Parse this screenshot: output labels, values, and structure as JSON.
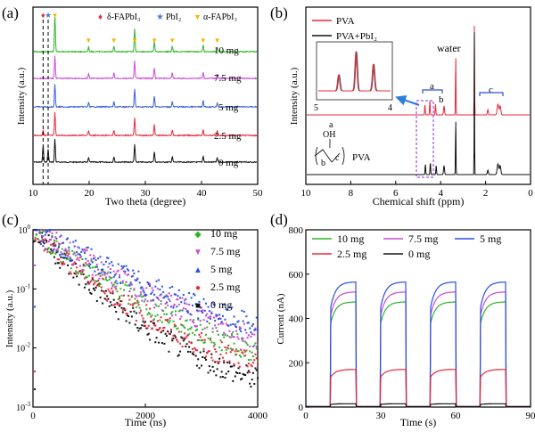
{
  "panels": {
    "a": {
      "label": "(a)"
    },
    "b": {
      "label": "(b)"
    },
    "c": {
      "label": "(c)"
    },
    "d": {
      "label": "(d)"
    }
  },
  "chart_data": [
    {
      "panel": "a",
      "type": "line",
      "xlabel": "Two theta (degree)",
      "ylabel": "Intensity (a.u.)",
      "xlim": [
        10,
        50
      ],
      "xticks": [
        10,
        20,
        30,
        40,
        50
      ],
      "legend": [
        {
          "marker": "♦",
          "text": "δ-FAPbI₃",
          "color": "#e8283c"
        },
        {
          "marker": "★",
          "text": "PbI₂",
          "color": "#4a7fd9"
        },
        {
          "marker": "▼",
          "text": "α-FAPbI₃",
          "color": "#f2b705"
        }
      ],
      "series": [
        {
          "name": "0 mg",
          "color": "#111111"
        },
        {
          "name": "2.5 mg",
          "color": "#e8283c"
        },
        {
          "name": "5 mg",
          "color": "#3a5fd9"
        },
        {
          "name": "7.5 mg",
          "color": "#c84bd6"
        },
        {
          "name": "10 mg",
          "color": "#2fb52a"
        }
      ],
      "peaks_2theta": [
        11.8,
        12.7,
        13.9,
        19.9,
        24.4,
        28.1,
        31.6,
        34.8,
        40.3,
        42.8
      ],
      "alpha_peak_markers": [
        13.9,
        19.9,
        24.4,
        28.1,
        31.6,
        34.8,
        40.3,
        42.8
      ]
    },
    {
      "panel": "b",
      "type": "line",
      "xlabel": "Chemical shift (ppm)",
      "ylabel": "Intensity (a.u.)",
      "xlim": [
        10,
        0
      ],
      "xticks": [
        10,
        8,
        6,
        4,
        2,
        0
      ],
      "series": [
        {
          "name": "PVA",
          "color": "#e8283c"
        },
        {
          "name": "PVA+PbI₂",
          "color": "#111111"
        }
      ],
      "annotations": [
        "water",
        "a",
        "b",
        "c",
        "PVA"
      ],
      "inset": {
        "xticks": [
          5,
          4
        ]
      },
      "structure_labels": {
        "oh": "OH",
        "a": "a",
        "b": "b",
        "c": "c"
      }
    },
    {
      "panel": "c",
      "type": "scatter",
      "xlabel": "Time (ns)",
      "ylabel": "Intensity (a.u.)",
      "xlim": [
        0,
        4000
      ],
      "ylim": [
        0.001,
        1
      ],
      "yscale": "log",
      "xticks": [
        0,
        2000,
        4000
      ],
      "yticks": [
        {
          "base": "10",
          "exp": "0"
        },
        {
          "base": "10",
          "exp": "-1"
        },
        {
          "base": "10",
          "exp": "-2"
        },
        {
          "base": "10",
          "exp": "-3"
        }
      ],
      "series": [
        {
          "name": "10 mg",
          "color": "#2fb52a",
          "marker": "◆",
          "tau": 560
        },
        {
          "name": "7.5 mg",
          "color": "#c84bd6",
          "marker": "▼",
          "tau": 680
        },
        {
          "name": "5 mg",
          "color": "#2a4fe0",
          "marker": "▲",
          "tau": 780
        },
        {
          "name": "2.5 mg",
          "color": "#e8283c",
          "marker": "●",
          "tau": 470
        },
        {
          "name": "0 mg",
          "color": "#111111",
          "marker": "■",
          "tau": 400
        }
      ]
    },
    {
      "panel": "d",
      "type": "line",
      "xlabel": "Time (s)",
      "ylabel": "Current (nA)",
      "xlim": [
        0,
        90
      ],
      "ylim": [
        0,
        800
      ],
      "xticks": [
        0,
        30,
        60,
        90
      ],
      "yticks": [
        0,
        200,
        400,
        600,
        800
      ],
      "on_periods_s": [
        [
          10,
          20
        ],
        [
          30,
          40
        ],
        [
          50,
          60
        ],
        [
          70,
          80
        ]
      ],
      "series": [
        {
          "name": "10 mg",
          "color": "#2fb52a",
          "on_current": 475
        },
        {
          "name": "7.5 mg",
          "color": "#c84bd6",
          "on_current": 520
        },
        {
          "name": "5 mg",
          "color": "#2a4fe0",
          "on_current": 565
        },
        {
          "name": "2.5 mg",
          "color": "#e8283c",
          "on_current": 170
        },
        {
          "name": "0 mg",
          "color": "#111111",
          "on_current": 15
        }
      ]
    }
  ]
}
